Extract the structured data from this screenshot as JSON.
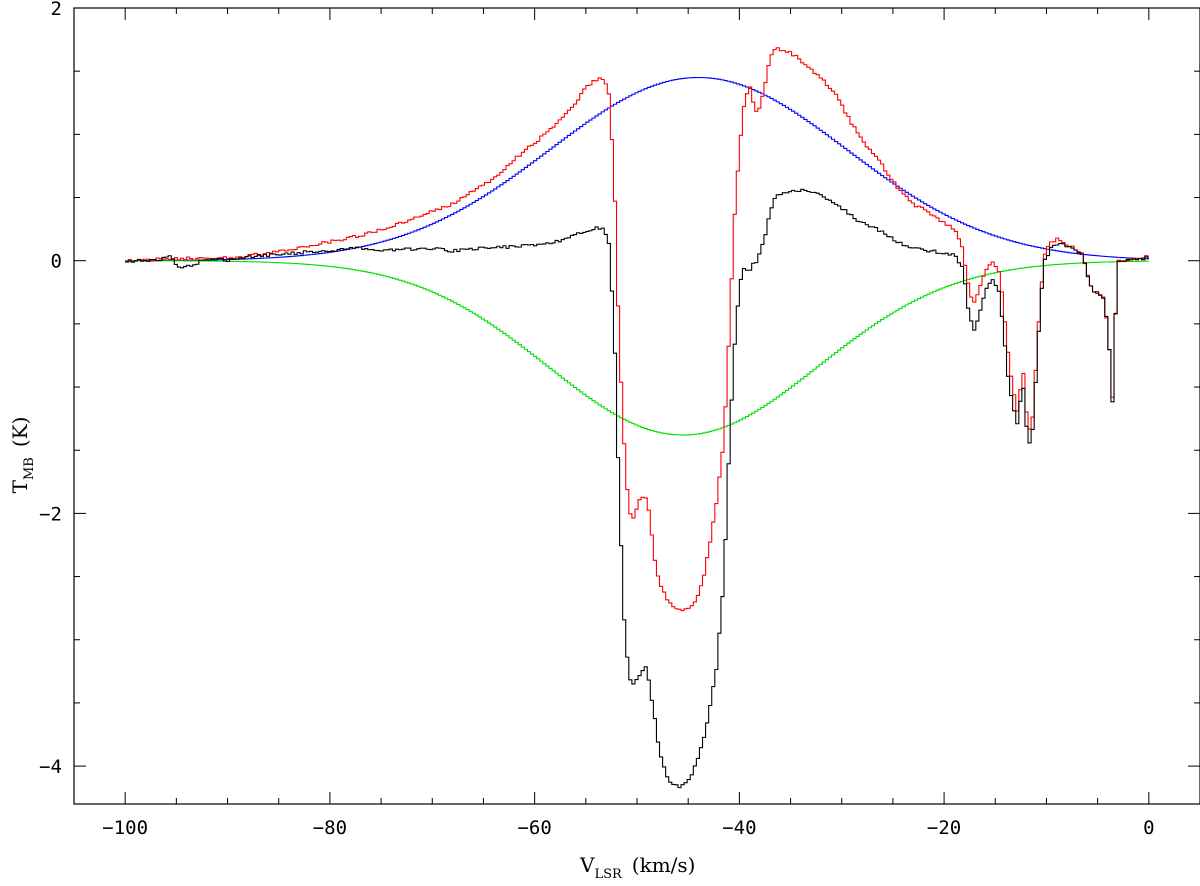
{
  "chart_data": {
    "type": "line",
    "title": "",
    "xlabel": {
      "main": "V",
      "sub": "LSR",
      "rest": "(km/s)"
    },
    "ylabel": {
      "main": "T",
      "sub": "MB",
      "rest": "(K)"
    },
    "xlim": [
      -105,
      5
    ],
    "ylim": [
      -4.3,
      2
    ],
    "x_ticks": [
      -100,
      -80,
      -60,
      -40,
      -20,
      0
    ],
    "x_tick_labels": [
      "−100",
      "−80",
      "−60",
      "−40",
      "−20",
      "0"
    ],
    "y_ticks": [
      -4,
      -2,
      0,
      2
    ],
    "y_tick_labels": [
      "−4",
      "−2",
      "0",
      "2"
    ],
    "grid": false,
    "legend": "none",
    "series": [
      {
        "color": "#ff0000",
        "style": "histogram",
        "points": [
          [
            -100,
            0.0
          ],
          [
            -97,
            0.01
          ],
          [
            -94,
            0.02
          ],
          [
            -92,
            0.01
          ],
          [
            -90,
            0.02
          ],
          [
            -87,
            0.05
          ],
          [
            -85,
            0.08
          ],
          [
            -83,
            0.1
          ],
          [
            -80,
            0.15
          ],
          [
            -77,
            0.2
          ],
          [
            -74,
            0.27
          ],
          [
            -71,
            0.36
          ],
          [
            -68,
            0.45
          ],
          [
            -66,
            0.55
          ],
          [
            -64,
            0.65
          ],
          [
            -62,
            0.8
          ],
          [
            -60,
            0.93
          ],
          [
            -58,
            1.07
          ],
          [
            -56,
            1.25
          ],
          [
            -55,
            1.38
          ],
          [
            -54,
            1.43
          ],
          [
            -53.2,
            1.45
          ],
          [
            -52.7,
            1.3
          ],
          [
            -52.2,
            0.6
          ],
          [
            -51.8,
            -0.5
          ],
          [
            -51.3,
            -1.4
          ],
          [
            -50.8,
            -2.0
          ],
          [
            -50.3,
            -2.05
          ],
          [
            -49.8,
            -1.9
          ],
          [
            -49.2,
            -1.85
          ],
          [
            -48.8,
            -2.0
          ],
          [
            -48.3,
            -2.35
          ],
          [
            -47.8,
            -2.55
          ],
          [
            -47,
            -2.7
          ],
          [
            -46,
            -2.77
          ],
          [
            -45,
            -2.75
          ],
          [
            -44.3,
            -2.7
          ],
          [
            -43.5,
            -2.5
          ],
          [
            -42.8,
            -2.2
          ],
          [
            -42.2,
            -1.9
          ],
          [
            -41.5,
            -1.4
          ],
          [
            -41.0,
            -0.6
          ],
          [
            -40.5,
            0.3
          ],
          [
            -40.0,
            0.9
          ],
          [
            -39.5,
            1.25
          ],
          [
            -39,
            1.38
          ],
          [
            -38.6,
            1.25
          ],
          [
            -38.2,
            1.15
          ],
          [
            -37.5,
            1.4
          ],
          [
            -37,
            1.6
          ],
          [
            -36.5,
            1.68
          ],
          [
            -35,
            1.65
          ],
          [
            -33.5,
            1.55
          ],
          [
            -32,
            1.45
          ],
          [
            -30.5,
            1.3
          ],
          [
            -29,
            1.08
          ],
          [
            -27.5,
            0.9
          ],
          [
            -26,
            0.75
          ],
          [
            -24.5,
            0.57
          ],
          [
            -23,
            0.45
          ],
          [
            -21.5,
            0.38
          ],
          [
            -20,
            0.3
          ],
          [
            -19,
            0.25
          ],
          [
            -18.2,
            0.1
          ],
          [
            -17.5,
            -0.25
          ],
          [
            -17,
            -0.35
          ],
          [
            -16.5,
            -0.2
          ],
          [
            -15.8,
            -0.05
          ],
          [
            -15.2,
            0.0
          ],
          [
            -14.6,
            -0.1
          ],
          [
            -14.2,
            -0.35
          ],
          [
            -13.8,
            -0.7
          ],
          [
            -13.3,
            -1.0
          ],
          [
            -12.8,
            -1.2
          ],
          [
            -12.3,
            -0.85
          ],
          [
            -11.8,
            -1.35
          ],
          [
            -11.4,
            -1.3
          ],
          [
            -11.0,
            -0.8
          ],
          [
            -10.6,
            -0.3
          ],
          [
            -10.2,
            0.05
          ],
          [
            -9.5,
            0.15
          ],
          [
            -8.8,
            0.18
          ],
          [
            -8,
            0.13
          ],
          [
            -7.2,
            0.1
          ],
          [
            -6.5,
            0.05
          ],
          [
            -6,
            -0.1
          ],
          [
            -5.5,
            -0.25
          ],
          [
            -5,
            -0.25
          ],
          [
            -4.4,
            -0.3
          ],
          [
            -3.9,
            -0.6
          ],
          [
            -3.6,
            -1.2
          ],
          [
            -3.3,
            -0.5
          ],
          [
            -3.0,
            0.0
          ],
          [
            -2,
            0.01
          ],
          [
            -1,
            0.03
          ],
          [
            0,
            0.03
          ]
        ]
      },
      {
        "color": "#000000",
        "style": "histogram",
        "points": [
          [
            -100,
            0.0
          ],
          [
            -97,
            0.0
          ],
          [
            -95.5,
            0.03
          ],
          [
            -95,
            -0.05
          ],
          [
            -93.5,
            -0.04
          ],
          [
            -92,
            0.02
          ],
          [
            -90,
            0.0
          ],
          [
            -88,
            0.03
          ],
          [
            -85,
            0.05
          ],
          [
            -82,
            0.07
          ],
          [
            -80,
            0.08
          ],
          [
            -77,
            0.1
          ],
          [
            -74,
            0.08
          ],
          [
            -71,
            0.1
          ],
          [
            -68,
            0.08
          ],
          [
            -65,
            0.1
          ],
          [
            -62,
            0.11
          ],
          [
            -60,
            0.12
          ],
          [
            -58,
            0.15
          ],
          [
            -56,
            0.2
          ],
          [
            -55,
            0.24
          ],
          [
            -54,
            0.26
          ],
          [
            -53.2,
            0.25
          ],
          [
            -52.7,
            0.12
          ],
          [
            -52.2,
            -0.6
          ],
          [
            -51.8,
            -1.7
          ],
          [
            -51.3,
            -2.8
          ],
          [
            -50.8,
            -3.3
          ],
          [
            -50.3,
            -3.35
          ],
          [
            -49.8,
            -3.3
          ],
          [
            -49.2,
            -3.2
          ],
          [
            -48.8,
            -3.35
          ],
          [
            -48.3,
            -3.6
          ],
          [
            -47.8,
            -3.9
          ],
          [
            -47,
            -4.1
          ],
          [
            -46,
            -4.17
          ],
          [
            -45,
            -4.12
          ],
          [
            -44.3,
            -4.0
          ],
          [
            -43.5,
            -3.8
          ],
          [
            -42.8,
            -3.5
          ],
          [
            -42.2,
            -3.2
          ],
          [
            -41.5,
            -2.5
          ],
          [
            -41.0,
            -1.5
          ],
          [
            -40.5,
            -0.7
          ],
          [
            -40.0,
            -0.2
          ],
          [
            -39.5,
            -0.05
          ],
          [
            -39,
            -0.08
          ],
          [
            -38.6,
            -0.02
          ],
          [
            -38.2,
            0.0
          ],
          [
            -37.5,
            0.2
          ],
          [
            -37,
            0.38
          ],
          [
            -36.5,
            0.5
          ],
          [
            -35,
            0.56
          ],
          [
            -33.5,
            0.55
          ],
          [
            -32,
            0.52
          ],
          [
            -30.5,
            0.45
          ],
          [
            -29,
            0.35
          ],
          [
            -27.5,
            0.28
          ],
          [
            -26,
            0.23
          ],
          [
            -24.5,
            0.15
          ],
          [
            -23,
            0.1
          ],
          [
            -21.5,
            0.08
          ],
          [
            -20,
            0.06
          ],
          [
            -19,
            0.05
          ],
          [
            -18.2,
            -0.05
          ],
          [
            -17.5,
            -0.45
          ],
          [
            -17,
            -0.55
          ],
          [
            -16.5,
            -0.4
          ],
          [
            -15.8,
            -0.2
          ],
          [
            -15.2,
            -0.15
          ],
          [
            -14.6,
            -0.25
          ],
          [
            -14.2,
            -0.55
          ],
          [
            -13.8,
            -0.9
          ],
          [
            -13.3,
            -1.15
          ],
          [
            -12.8,
            -1.3
          ],
          [
            -12.3,
            -0.95
          ],
          [
            -11.8,
            -1.45
          ],
          [
            -11.4,
            -1.4
          ],
          [
            -11.0,
            -0.9
          ],
          [
            -10.6,
            -0.35
          ],
          [
            -10.2,
            0.0
          ],
          [
            -9.5,
            0.1
          ],
          [
            -8.8,
            0.14
          ],
          [
            -8,
            0.11
          ],
          [
            -7.2,
            0.08
          ],
          [
            -6.5,
            0.04
          ],
          [
            -6,
            -0.1
          ],
          [
            -5.5,
            -0.25
          ],
          [
            -5,
            -0.25
          ],
          [
            -4.4,
            -0.3
          ],
          [
            -3.9,
            -0.6
          ],
          [
            -3.6,
            -1.25
          ],
          [
            -3.3,
            -0.5
          ],
          [
            -3.0,
            0.0
          ],
          [
            -2,
            0.01
          ],
          [
            -1,
            0.02
          ],
          [
            0,
            0.02
          ]
        ]
      },
      {
        "color": "#0000ff",
        "style": "gaussian",
        "amplitude": 1.45,
        "center": -44,
        "sigma": 14.5,
        "x_range": [
          -100,
          0
        ]
      },
      {
        "color": "#00e000",
        "style": "gaussian",
        "amplitude": -1.38,
        "center": -45.5,
        "sigma": 13.2,
        "x_range": [
          -100,
          0
        ]
      }
    ]
  }
}
